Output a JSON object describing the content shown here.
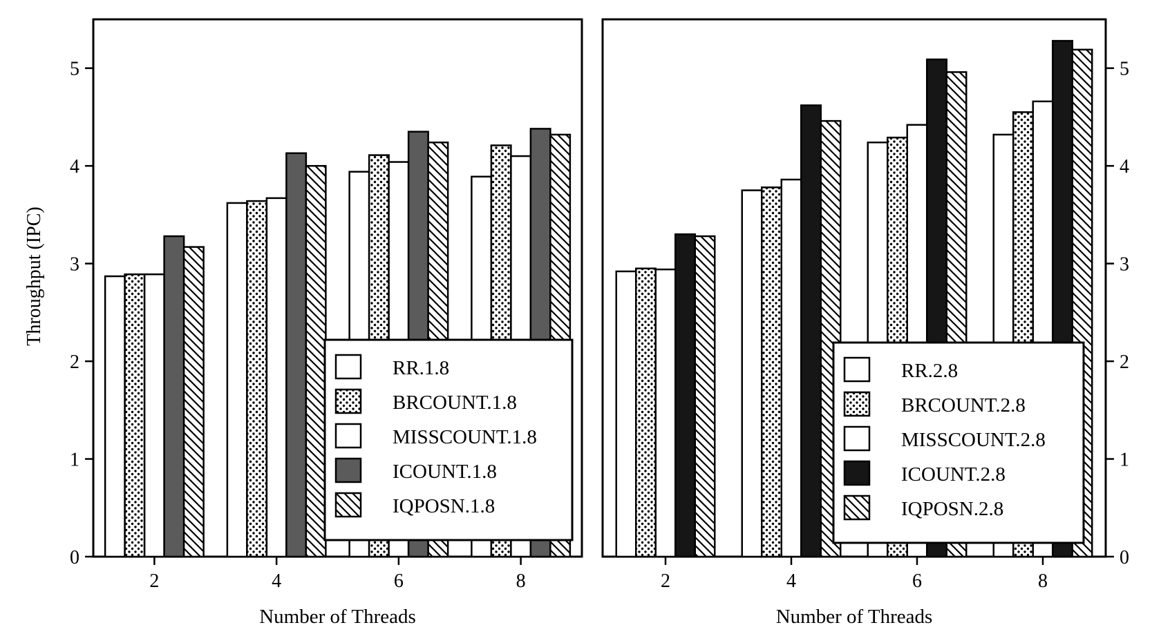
{
  "y_axis_label": "Throughput (IPC)",
  "chart_data": [
    {
      "type": "bar",
      "xlabel": "Number of Threads",
      "ylabel": "Throughput (IPC)",
      "categories": [
        "2",
        "4",
        "6",
        "8"
      ],
      "ylim": [
        0,
        5.5
      ],
      "yticks": [
        "0",
        "1",
        "2",
        "3",
        "4",
        "5"
      ],
      "grid": false,
      "legend_position": "bottom-right",
      "y_axis_side": "left",
      "series": [
        {
          "name": "RR.1.8",
          "pattern": "white",
          "values": [
            2.87,
            3.62,
            3.94,
            3.89
          ]
        },
        {
          "name": "BRCOUNT.1.8",
          "pattern": "dots",
          "values": [
            2.89,
            3.64,
            4.11,
            4.21
          ]
        },
        {
          "name": "MISSCOUNT.1.8",
          "pattern": "white",
          "values": [
            2.89,
            3.67,
            4.04,
            4.1
          ]
        },
        {
          "name": "ICOUNT.1.8",
          "pattern": "dark-gray",
          "values": [
            3.28,
            4.13,
            4.35,
            4.38
          ]
        },
        {
          "name": "IQPOSN.1.8",
          "pattern": "hatch",
          "values": [
            3.17,
            4.0,
            4.24,
            4.32
          ]
        }
      ]
    },
    {
      "type": "bar",
      "xlabel": "Number of Threads",
      "ylabel": "",
      "categories": [
        "2",
        "4",
        "6",
        "8"
      ],
      "ylim": [
        0,
        5.5
      ],
      "yticks": [
        "0",
        "1",
        "2",
        "3",
        "4",
        "5"
      ],
      "grid": false,
      "legend_position": "bottom-right",
      "y_axis_side": "right",
      "series": [
        {
          "name": "RR.2.8",
          "pattern": "white",
          "values": [
            2.92,
            3.75,
            4.24,
            4.32
          ]
        },
        {
          "name": "BRCOUNT.2.8",
          "pattern": "dots",
          "values": [
            2.95,
            3.78,
            4.29,
            4.55
          ]
        },
        {
          "name": "MISSCOUNT.2.8",
          "pattern": "white",
          "values": [
            2.94,
            3.86,
            4.42,
            4.66
          ]
        },
        {
          "name": "ICOUNT.2.8",
          "pattern": "black",
          "values": [
            3.3,
            4.62,
            5.09,
            5.28
          ]
        },
        {
          "name": "IQPOSN.2.8",
          "pattern": "hatch",
          "values": [
            3.28,
            4.46,
            4.96,
            5.19
          ]
        }
      ]
    }
  ]
}
